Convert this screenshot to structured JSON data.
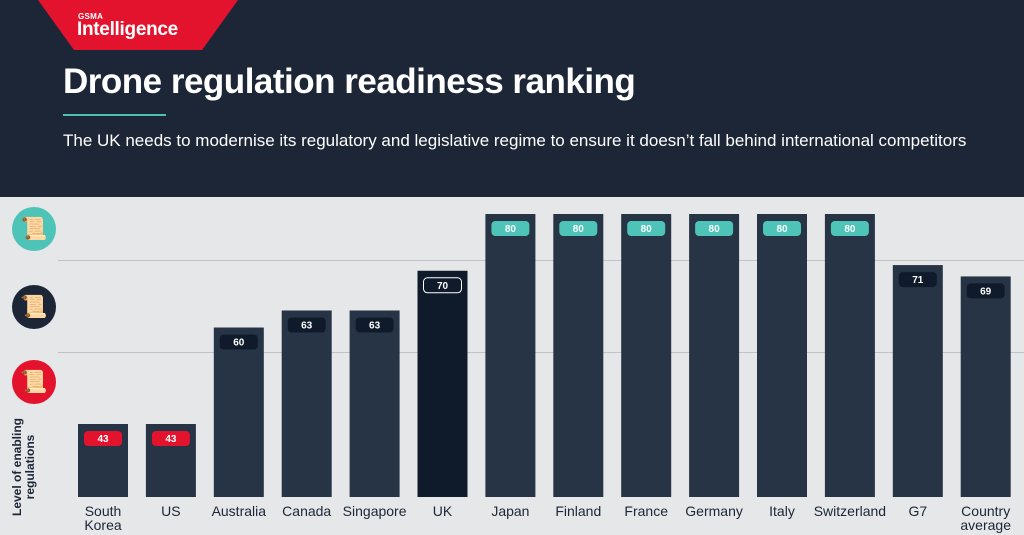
{
  "header": {
    "brand_small": "GSMA",
    "brand_name": "Intelligence",
    "title": "Drone regulation readiness ranking",
    "subtitle": "The UK needs to modernise its regulatory and legislative regime to ensure it doesn’t fall behind international competitors"
  },
  "legend_icons": [
    {
      "icon": "high-regulation-scroll-icon",
      "color": "#4ec3b7"
    },
    {
      "icon": "medium-regulation-scroll-icon",
      "color": "#1c2637"
    },
    {
      "icon": "low-regulation-scroll-icon",
      "color": "#e3132e"
    }
  ],
  "colors": {
    "background": "#e6e7e8",
    "header": "#1c2637",
    "bar": "#263445",
    "bar_highlight": "#0f1b2b",
    "badge_high": "#4ec3b7",
    "badge_mid": "#0f1b2b",
    "badge_low": "#e3132e"
  },
  "chart_data": {
    "type": "bar",
    "title": "Drone regulation readiness ranking",
    "ylabel": "Level of enabling regulations",
    "xlabel": "",
    "categories": [
      "South Korea",
      "US",
      "Australia",
      "Canada",
      "Singapore",
      "UK",
      "Japan",
      "Finland",
      "France",
      "Germany",
      "Italy",
      "Switzerland",
      "G7",
      "Country average"
    ],
    "values": [
      43,
      43,
      60,
      63,
      63,
      70,
      80,
      80,
      80,
      80,
      80,
      80,
      71,
      69
    ],
    "badge_levels": [
      "low",
      "low",
      "mid",
      "mid",
      "mid",
      "mid",
      "high",
      "high",
      "high",
      "high",
      "high",
      "high",
      "mid",
      "mid"
    ],
    "highlight": "UK",
    "ylim": [
      0,
      80
    ],
    "grid": true,
    "legend": "none"
  }
}
